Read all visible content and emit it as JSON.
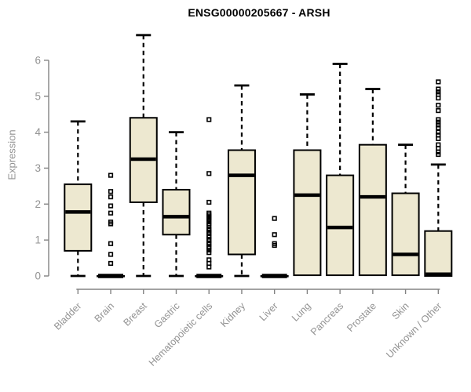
{
  "header": {
    "title": "ENSG00000205667 - ARSH"
  },
  "chart_data": {
    "type": "boxplot",
    "title": "ENSG00000205667 - ARSH",
    "xlabel": "",
    "ylabel": "Expression",
    "ylim": [
      0,
      6
    ],
    "yticks": [
      0,
      1,
      2,
      3,
      4,
      5,
      6
    ],
    "grid": false,
    "legend": "none",
    "categories": [
      "Bladder",
      "Brain",
      "Breast",
      "Gastric",
      "Hematopoietic cells",
      "Kidney",
      "Liver",
      "Lung",
      "Pancreas",
      "Prostate",
      "Skin",
      "Unknown / Other"
    ],
    "series": [
      {
        "name": "Bladder",
        "whisker_low": 0,
        "q1": 0.7,
        "median": 1.78,
        "q3": 2.55,
        "whisker_high": 4.3,
        "outliers": []
      },
      {
        "name": "Brain",
        "whisker_low": 0,
        "q1": 0,
        "median": 0,
        "q3": 0,
        "whisker_high": 0,
        "outliers": [
          2.8,
          2.35,
          2.2,
          1.95,
          1.75,
          1.5,
          1.45,
          0.9,
          0.6,
          0.35
        ]
      },
      {
        "name": "Breast",
        "whisker_low": 0,
        "q1": 2.05,
        "median": 3.25,
        "q3": 4.4,
        "whisker_high": 6.7,
        "outliers": []
      },
      {
        "name": "Gastric",
        "whisker_low": 0,
        "q1": 1.15,
        "median": 1.65,
        "q3": 2.4,
        "whisker_high": 4.0,
        "outliers": []
      },
      {
        "name": "Hematopoietic cells",
        "whisker_low": 0,
        "q1": 0,
        "median": 0,
        "q3": 0,
        "whisker_high": 0,
        "outliers": [
          4.35,
          2.85,
          2.05,
          1.75,
          1.7,
          1.65,
          1.62,
          1.58,
          1.52,
          1.45,
          1.4,
          1.3,
          1.27,
          1.22,
          1.18,
          1.12,
          1.08,
          1.02,
          0.98,
          0.92,
          0.88,
          0.82,
          0.78,
          0.72,
          0.65,
          0.45,
          0.35,
          0.25
        ]
      },
      {
        "name": "Kidney",
        "whisker_low": 0,
        "q1": 0.6,
        "median": 2.8,
        "q3": 3.5,
        "whisker_high": 5.3,
        "outliers": []
      },
      {
        "name": "Liver",
        "whisker_low": 0,
        "q1": 0,
        "median": 0,
        "q3": 0,
        "whisker_high": 0,
        "outliers": [
          1.6,
          1.15,
          0.9,
          0.85
        ]
      },
      {
        "name": "Lung",
        "whisker_low": 0,
        "q1": 0.02,
        "median": 2.25,
        "q3": 3.5,
        "whisker_high": 5.05,
        "outliers": []
      },
      {
        "name": "Pancreas",
        "whisker_low": 0,
        "q1": 0.02,
        "median": 1.35,
        "q3": 2.8,
        "whisker_high": 5.9,
        "outliers": []
      },
      {
        "name": "Prostate",
        "whisker_low": 0,
        "q1": 0.02,
        "median": 2.2,
        "q3": 3.65,
        "whisker_high": 5.2,
        "outliers": []
      },
      {
        "name": "Skin",
        "whisker_low": 0,
        "q1": 0.02,
        "median": 0.6,
        "q3": 2.3,
        "whisker_high": 3.65,
        "outliers": []
      },
      {
        "name": "Unknown / Other",
        "whisker_low": 0,
        "q1": 0,
        "median": 0.05,
        "q3": 1.25,
        "whisker_high": 3.1,
        "outliers": [
          5.4,
          5.2,
          5.12,
          5.05,
          4.95,
          4.75,
          4.6,
          4.35,
          4.28,
          4.2,
          4.12,
          4.0,
          3.92,
          3.82,
          3.65,
          3.55,
          3.45,
          3.38
        ]
      }
    ],
    "colors": {
      "box_fill": "#EDE8D0",
      "box_border": "#000000",
      "median": "#000000",
      "whisker": "#000000",
      "axis_line": "#838383",
      "axis_text": "#929292",
      "title_text": "#000000",
      "background": "#ffffff"
    }
  }
}
